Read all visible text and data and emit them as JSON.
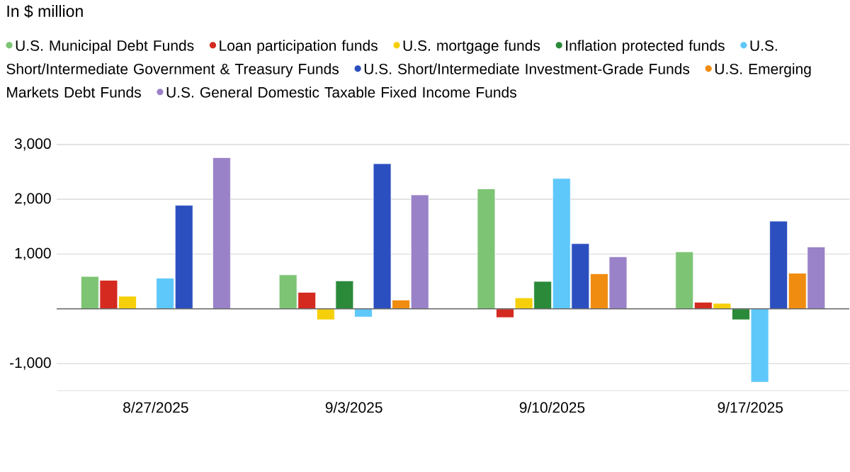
{
  "chart_data": {
    "type": "bar",
    "annotations": [
      "In $ million"
    ],
    "categories": [
      "8/27/2025",
      "9/3/2025",
      "9/10/2025",
      "9/17/2025"
    ],
    "series": [
      {
        "name": "U.S. Municipal Debt Funds",
        "color": "#7dc474",
        "values": [
          590,
          620,
          2190,
          1040
        ]
      },
      {
        "name": "Loan participation funds",
        "color": "#d42a20",
        "values": [
          520,
          300,
          -160,
          120
        ]
      },
      {
        "name": "U.S. mortgage funds",
        "color": "#f5d00a",
        "values": [
          230,
          -200,
          200,
          100
        ]
      },
      {
        "name": "Inflation protected funds",
        "color": "#2a8a3a",
        "values": [
          null,
          510,
          500,
          -200
        ]
      },
      {
        "name": "U.S. Short/Intermediate Government & Treasury Funds",
        "color": "#5ec8fa",
        "values": [
          560,
          -150,
          2380,
          -1340
        ]
      },
      {
        "name": "U.S. Short/Intermediate Investment-Grade Funds",
        "color": "#2c4fc0",
        "values": [
          1890,
          2650,
          1190,
          1600
        ]
      },
      {
        "name": "U.S. Emerging Markets Debt Funds",
        "color": "#f08c10",
        "values": [
          null,
          160,
          640,
          650
        ]
      },
      {
        "name": "U.S. General Domestic Taxable Fixed Income Funds",
        "color": "#9a82c8",
        "values": [
          2760,
          2080,
          950,
          1130
        ]
      }
    ],
    "ylim": [
      -1500,
      3000
    ],
    "yticks": [
      {
        "value": -1000,
        "label": "-1,000"
      },
      {
        "value": 1000,
        "label": "1,000"
      },
      {
        "value": 2000,
        "label": "2,000"
      },
      {
        "value": 3000,
        "label": "3,000"
      }
    ],
    "grid": "y",
    "legend": "top"
  }
}
